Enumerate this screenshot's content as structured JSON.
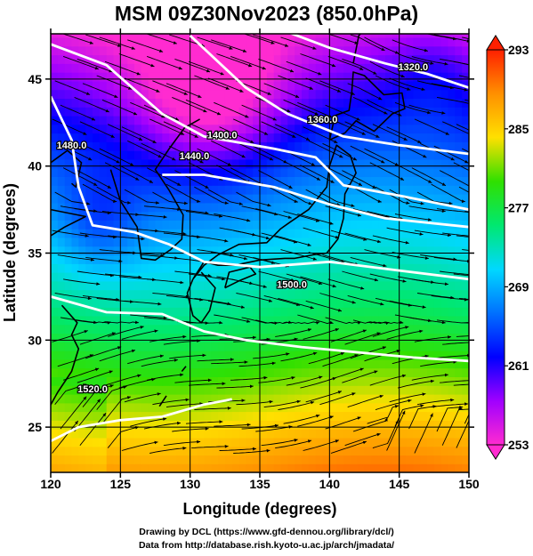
{
  "title": "MSM 09Z30Nov2023 (850.0hPa)",
  "credits": {
    "line1": "Drawing by DCL (https://www.gfd-dennou.org/library/dcl/)",
    "line2": "Data from http://database.rish.kyoto-u.ac.jp/arch/jmadata/"
  },
  "chart_data": {
    "type": "heatmap",
    "title": "MSM 09Z30Nov2023 (850.0hPa)",
    "xlabel": "Longitude (degrees)",
    "ylabel": "Latitude  (degrees)",
    "xlim": [
      120,
      150
    ],
    "ylim": [
      22.4,
      47.6
    ],
    "xticks": [
      120,
      125,
      130,
      135,
      140,
      145,
      150
    ],
    "yticks": [
      25,
      30,
      35,
      40,
      45
    ],
    "grid": true,
    "colorbar": {
      "min": 253,
      "max": 293,
      "ticks": [
        253,
        261,
        269,
        277,
        285,
        293
      ],
      "colors": [
        "#ff2bd0",
        "#a000ff",
        "#0000ff",
        "#0070ff",
        "#00d8ff",
        "#00e870",
        "#30e000",
        "#ffe000",
        "#ff9000",
        "#ff2000"
      ]
    },
    "contours": [
      {
        "label": "1320.0",
        "label_at": [
          146,
          45.5
        ],
        "points": [
          [
            136,
            48
          ],
          [
            140,
            46.8
          ],
          [
            144,
            45.9
          ],
          [
            147,
            45.3
          ],
          [
            150,
            44.5
          ]
        ]
      },
      {
        "label": "1360.0",
        "label_at": [
          139.5,
          42.5
        ],
        "points": [
          [
            130,
            47.5
          ],
          [
            134,
            44.5
          ],
          [
            137,
            43
          ],
          [
            141,
            41.7
          ],
          [
            145,
            41.2
          ],
          [
            150,
            40.7
          ]
        ]
      },
      {
        "label": "1400.0",
        "label_at": [
          132.3,
          41.6
        ],
        "points": [
          [
            120,
            47
          ],
          [
            124,
            45.8
          ],
          [
            128,
            43
          ],
          [
            131,
            41.7
          ],
          [
            136,
            41
          ],
          [
            139,
            40.5
          ],
          [
            141,
            38.9
          ],
          [
            145,
            38.3
          ],
          [
            150,
            37.5
          ]
        ]
      },
      {
        "label": "1440.0",
        "label_at": [
          130.3,
          40.4
        ],
        "points": [
          [
            128,
            39.5
          ],
          [
            131,
            39.5
          ],
          [
            136,
            38.8
          ],
          [
            140,
            37.8
          ],
          [
            144,
            37
          ],
          [
            150,
            36.5
          ]
        ]
      },
      {
        "label": "1480.0",
        "label_at": [
          121.5,
          41
        ],
        "points": [
          [
            120,
            44
          ],
          [
            121.5,
            41.5
          ],
          [
            122,
            38.8
          ],
          [
            123,
            36.6
          ],
          [
            126,
            36.2
          ],
          [
            128.5,
            35.5
          ],
          [
            131,
            34.5
          ],
          [
            135,
            34.2
          ],
          [
            140,
            34.5
          ],
          [
            145,
            34
          ],
          [
            150,
            33.5
          ]
        ]
      },
      {
        "label": "1500.0",
        "label_at": [
          137.3,
          33
        ],
        "points": [
          [
            120,
            32.5
          ],
          [
            124,
            31.6
          ],
          [
            128,
            31.5
          ],
          [
            131,
            30.5
          ],
          [
            134,
            30
          ],
          [
            138,
            29.6
          ],
          [
            142,
            29.3
          ],
          [
            146,
            29
          ],
          [
            150,
            28.8
          ]
        ]
      },
      {
        "label": "1520.0",
        "label_at": [
          123,
          27
        ],
        "points": [
          [
            120,
            24.2
          ],
          [
            122,
            25
          ],
          [
            125,
            25.4
          ],
          [
            128,
            25.6
          ],
          [
            131,
            26.3
          ],
          [
            133,
            26.6
          ]
        ]
      }
    ]
  }
}
